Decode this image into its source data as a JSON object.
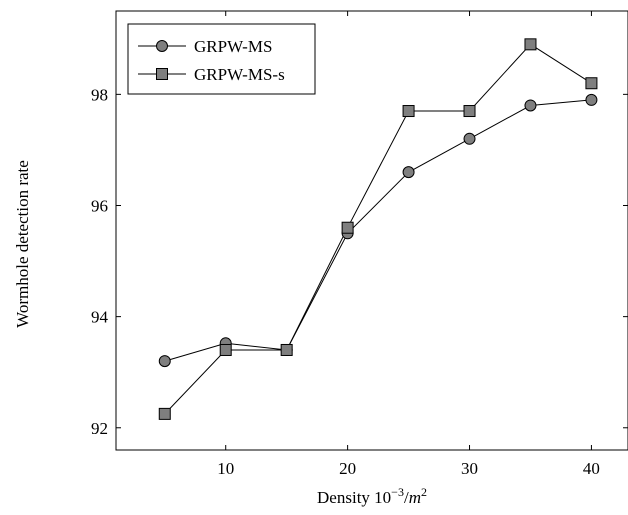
{
  "chart_data": {
    "type": "line",
    "title": "",
    "xlabel": "Density 10^{-3}/m^2",
    "xlabel_parts": {
      "base": "Density 10",
      "exp": "−3",
      "slash": "/",
      "var": "m",
      "var_exp": "2"
    },
    "ylabel": "Wormhole detection rate",
    "xlim": [
      1,
      43
    ],
    "ylim": [
      91.6,
      99.5
    ],
    "xticks": [
      10,
      20,
      30,
      40
    ],
    "yticks": [
      92,
      94,
      96,
      98
    ],
    "grid": false,
    "legend_position": "top-left",
    "series": [
      {
        "name": "GRPW-MS",
        "marker": "circle",
        "x": [
          5,
          10,
          15,
          20,
          25,
          30,
          35,
          40
        ],
        "y": [
          93.2,
          93.52,
          93.4,
          95.5,
          96.6,
          97.2,
          97.8,
          97.9
        ],
        "color": "#7f7f7f"
      },
      {
        "name": "GRPW-MS-s",
        "marker": "square",
        "x": [
          5,
          10,
          15,
          20,
          25,
          30,
          35,
          40
        ],
        "y": [
          92.25,
          93.4,
          93.4,
          95.6,
          97.7,
          97.7,
          98.9,
          98.2
        ],
        "color": "#7f7f7f"
      }
    ]
  }
}
